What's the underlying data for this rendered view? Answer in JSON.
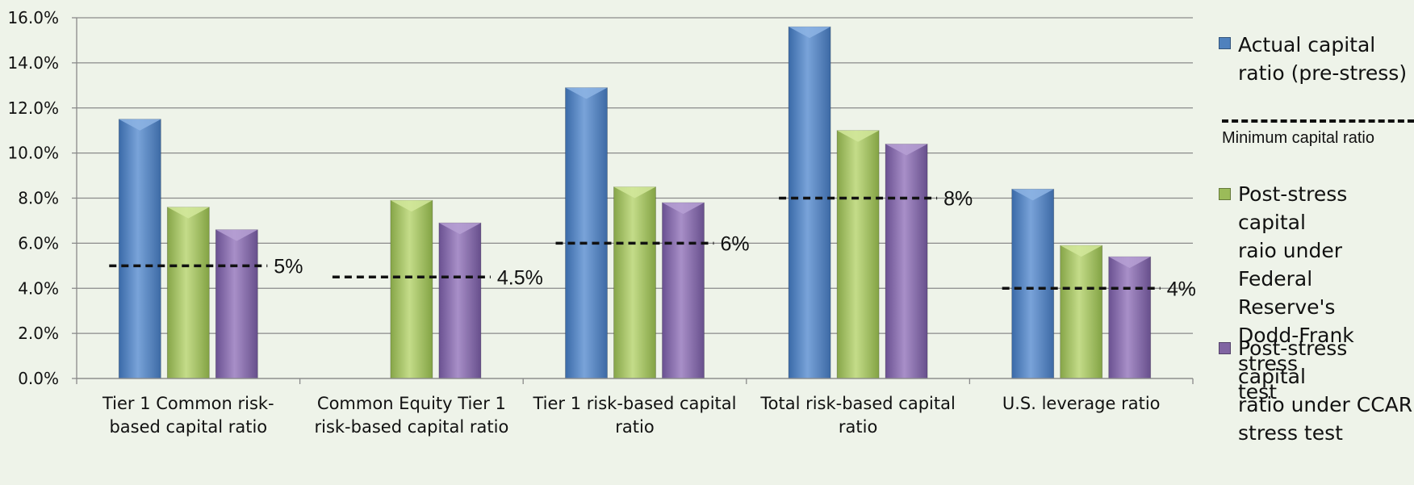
{
  "chart_data": {
    "type": "bar",
    "categories": [
      [
        "Tier 1 Common risk-",
        "based capital ratio"
      ],
      [
        "Common Equity Tier 1",
        "risk-based capital ratio"
      ],
      [
        "Tier 1 risk-based capital",
        "ratio"
      ],
      [
        "Total risk-based capital",
        "ratio"
      ],
      [
        "U.S. leverage ratio"
      ]
    ],
    "series": [
      {
        "name": "Actual capital ratio (pre-stress)",
        "color": "#4f81bd",
        "values": [
          11.5,
          null,
          12.9,
          15.6,
          8.4
        ]
      },
      {
        "name": "Post-stress capital raio under Federal Reserve's Dodd-Frank stress test",
        "color": "#9bbb59",
        "values": [
          7.6,
          7.9,
          8.5,
          11.0,
          5.9
        ]
      },
      {
        "name": "Post-stress capital ratio under CCAR stress test",
        "color": "#8064a2",
        "values": [
          6.6,
          6.9,
          7.8,
          10.4,
          5.4
        ]
      }
    ],
    "thresholds": {
      "name": "Minimum capital ratio",
      "values": [
        5.0,
        4.5,
        6.0,
        8.0,
        4.0
      ],
      "labels": [
        "5%",
        "4.5%",
        "6%",
        "8%",
        "4%"
      ]
    },
    "ylim": [
      0,
      16
    ],
    "yticks": [
      "0.0%",
      "2.0%",
      "4.0%",
      "6.0%",
      "8.0%",
      "10.0%",
      "12.0%",
      "14.0%",
      "16.0%"
    ],
    "grid": true,
    "legend_position": "right"
  },
  "legend": {
    "actual": [
      "Actual capital",
      "ratio (pre-stress)"
    ],
    "minimum": "Minimum capital ratio",
    "dodd_frank": [
      "Post-stress capital",
      "raio under",
      "Federal Reserve's",
      "Dodd-Frank stress",
      "test"
    ],
    "ccar": [
      "Post-stress capital",
      "ratio under CCAR",
      "stress test"
    ]
  }
}
